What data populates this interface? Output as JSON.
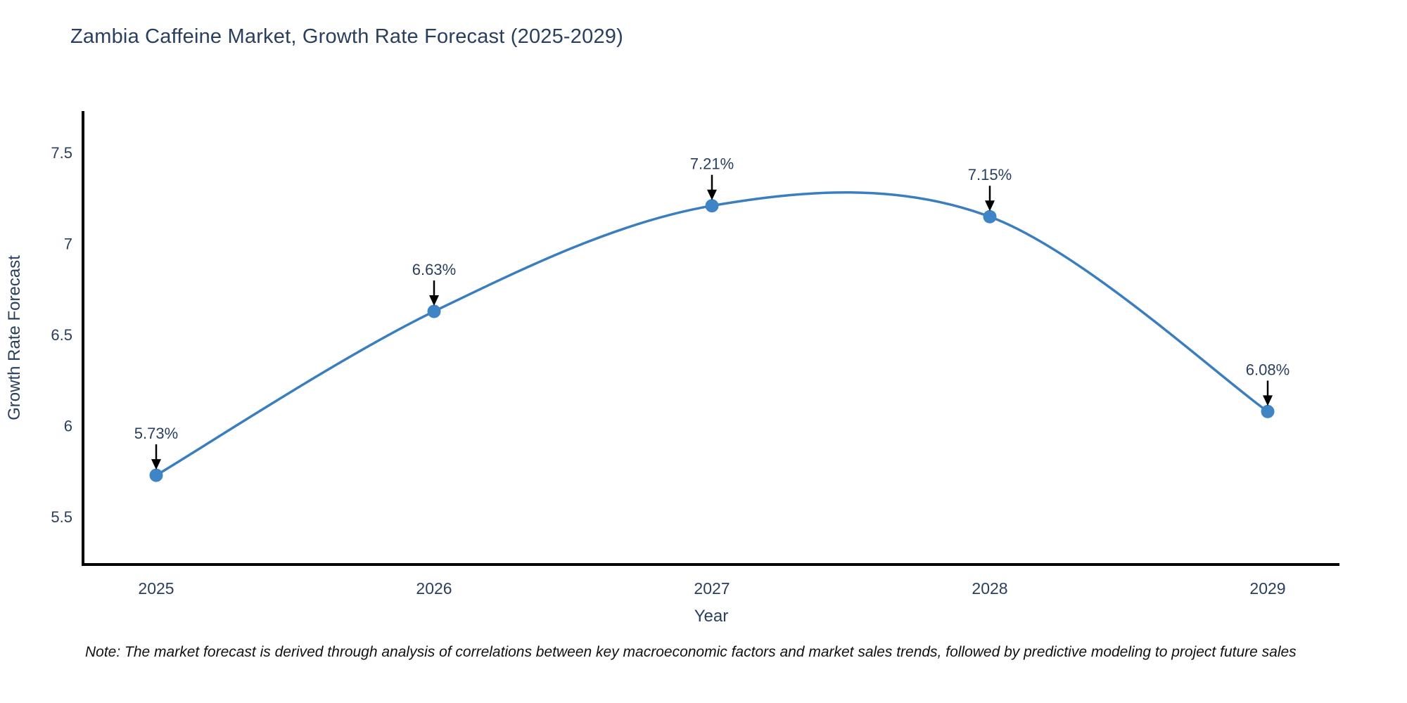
{
  "title": {
    "color": "#2a3f5f"
  },
  "note": {
    "text": "Note: The market forecast is derived through analysis of correlations between key macroeconomic factors and market sales trends, followed by predictive modeling to project future sales",
    "color": "#111111"
  },
  "chart_data": {
    "type": "line",
    "title": "Zambia Caffeine Market, Growth Rate Forecast (2025-2029)",
    "xlabel": "Year",
    "ylabel": "Growth Rate Forecast",
    "categories": [
      2025,
      2026,
      2027,
      2028,
      2029
    ],
    "values": [
      5.73,
      6.63,
      7.21,
      7.15,
      6.08
    ],
    "point_labels": [
      "5.73%",
      "6.63%",
      "7.21%",
      "7.15%",
      "6.08%"
    ],
    "yticks": [
      7.5,
      7,
      6.5,
      6,
      5.5
    ],
    "ylim": [
      5.24,
      7.73
    ],
    "line_shape": "spline",
    "grid": false,
    "legend_position": "none",
    "line_color": "#3a7ebf",
    "marker_color": "#3f84c4",
    "axis_color": "#000000",
    "annotation_arrow_color": "#000000",
    "label_color": "#2a3f5f"
  }
}
